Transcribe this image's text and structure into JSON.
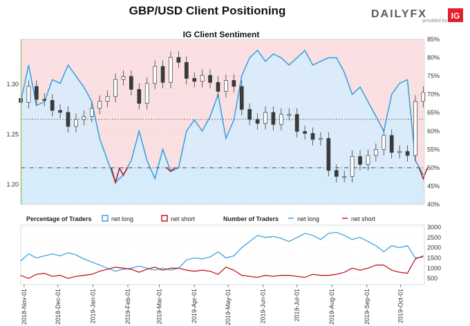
{
  "page": {
    "title": "GBP/USD Client Positioning",
    "subtitle": "IG Client Sentiment",
    "brand": {
      "name": "DAILYFX",
      "tagline": "provided by",
      "partner": "IG"
    }
  },
  "colors": {
    "net_long": "#3aa3e0",
    "net_short": "#c4161c",
    "long_fill": "#d7ecfb",
    "short_fill": "#fbe0e3",
    "candle_dark": "#3a3a3a",
    "brand_orange": "#f36f21",
    "ig_red": "#e4202e"
  },
  "chart_data": [
    {
      "type": "line",
      "name": "price-and-sentiment",
      "title": "IG Client Sentiment",
      "x_range": [
        "2018-10-29",
        "2019-10-22"
      ],
      "left_axis": {
        "ticks": [
          1.2,
          1.25,
          1.3
        ],
        "labels": [
          "1.20",
          "1.25",
          "1.30"
        ],
        "range": [
          1.18,
          1.345
        ]
      },
      "right_axis": {
        "ticks": [
          40,
          45,
          50,
          55,
          60,
          65,
          70,
          75,
          80,
          85
        ],
        "labels": [
          "40%",
          "45%",
          "50%",
          "55%",
          "60%",
          "65%",
          "70%",
          "75%",
          "80%",
          "85%"
        ],
        "range": [
          40,
          85
        ]
      },
      "reference_lines": [
        {
          "axis": "right",
          "value": 50
        },
        {
          "axis": "left",
          "value": 1.265
        }
      ],
      "price_close": [
        [
          "2018-10-29",
          1.282
        ],
        [
          "2018-11-05",
          1.298
        ],
        [
          "2018-11-12",
          1.285
        ],
        [
          "2018-11-19",
          1.284
        ],
        [
          "2018-11-26",
          1.274
        ],
        [
          "2018-12-03",
          1.272
        ],
        [
          "2018-12-10",
          1.258
        ],
        [
          "2018-12-17",
          1.265
        ],
        [
          "2018-12-24",
          1.268
        ],
        [
          "2018-12-31",
          1.276
        ],
        [
          "2019-01-07",
          1.283
        ],
        [
          "2019-01-14",
          1.288
        ],
        [
          "2019-01-21",
          1.305
        ],
        [
          "2019-01-28",
          1.308
        ],
        [
          "2019-02-04",
          1.295
        ],
        [
          "2019-02-11",
          1.281
        ],
        [
          "2019-02-18",
          1.301
        ],
        [
          "2019-02-25",
          1.318
        ],
        [
          "2019-03-04",
          1.302
        ],
        [
          "2019-03-11",
          1.327
        ],
        [
          "2019-03-18",
          1.322
        ],
        [
          "2019-03-25",
          1.306
        ],
        [
          "2019-04-01",
          1.303
        ],
        [
          "2019-04-08",
          1.309
        ],
        [
          "2019-04-15",
          1.302
        ],
        [
          "2019-04-22",
          1.293
        ],
        [
          "2019-04-29",
          1.304
        ],
        [
          "2019-05-06",
          1.298
        ],
        [
          "2019-05-13",
          1.275
        ],
        [
          "2019-05-20",
          1.265
        ],
        [
          "2019-05-27",
          1.261
        ],
        [
          "2019-06-03",
          1.272
        ],
        [
          "2019-06-10",
          1.26
        ],
        [
          "2019-06-17",
          1.27
        ],
        [
          "2019-06-24",
          1.27
        ],
        [
          "2019-07-01",
          1.253
        ],
        [
          "2019-07-08",
          1.251
        ],
        [
          "2019-07-15",
          1.245
        ],
        [
          "2019-07-22",
          1.246
        ],
        [
          "2019-07-29",
          1.214
        ],
        [
          "2019-08-05",
          1.208
        ],
        [
          "2019-08-12",
          1.208
        ],
        [
          "2019-08-19",
          1.228
        ],
        [
          "2019-08-26",
          1.22
        ],
        [
          "2019-09-02",
          1.229
        ],
        [
          "2019-09-09",
          1.235
        ],
        [
          "2019-09-16",
          1.249
        ],
        [
          "2019-09-23",
          1.232
        ],
        [
          "2019-09-30",
          1.233
        ],
        [
          "2019-10-07",
          1.229
        ],
        [
          "2019-10-14",
          1.283
        ],
        [
          "2019-10-21",
          1.292
        ]
      ],
      "series": [
        {
          "name": "net long",
          "axis": "right",
          "values": [
            [
              "2018-10-29",
              68
            ],
            [
              "2018-11-05",
              78
            ],
            [
              "2018-11-12",
              67
            ],
            [
              "2018-11-19",
              68
            ],
            [
              "2018-11-26",
              74
            ],
            [
              "2018-12-03",
              73
            ],
            [
              "2018-12-10",
              78
            ],
            [
              "2018-12-17",
              75
            ],
            [
              "2018-12-24",
              72
            ],
            [
              "2018-12-31",
              68
            ],
            [
              "2019-01-07",
              58
            ],
            [
              "2019-01-14",
              52
            ],
            [
              "2019-01-21",
              46
            ],
            [
              "2019-01-28",
              48
            ],
            [
              "2019-02-04",
              52
            ],
            [
              "2019-02-11",
              60
            ],
            [
              "2019-02-18",
              52
            ],
            [
              "2019-02-25",
              47
            ],
            [
              "2019-03-04",
              55
            ],
            [
              "2019-03-11",
              49
            ],
            [
              "2019-03-18",
              50
            ],
            [
              "2019-03-25",
              60
            ],
            [
              "2019-04-01",
              63
            ],
            [
              "2019-04-08",
              60
            ],
            [
              "2019-04-15",
              64
            ],
            [
              "2019-04-22",
              70
            ],
            [
              "2019-04-29",
              58
            ],
            [
              "2019-05-06",
              63
            ],
            [
              "2019-05-13",
              75
            ],
            [
              "2019-05-20",
              80
            ],
            [
              "2019-05-27",
              82
            ],
            [
              "2019-06-03",
              79
            ],
            [
              "2019-06-10",
              81
            ],
            [
              "2019-06-17",
              80
            ],
            [
              "2019-06-24",
              78
            ],
            [
              "2019-07-01",
              80
            ],
            [
              "2019-07-08",
              82
            ],
            [
              "2019-07-15",
              78
            ],
            [
              "2019-07-22",
              79
            ],
            [
              "2019-07-29",
              80
            ],
            [
              "2019-08-05",
              80
            ],
            [
              "2019-08-12",
              76
            ],
            [
              "2019-08-19",
              70
            ],
            [
              "2019-08-26",
              72
            ],
            [
              "2019-09-02",
              68
            ],
            [
              "2019-09-09",
              64
            ],
            [
              "2019-09-16",
              60
            ],
            [
              "2019-09-23",
              70
            ],
            [
              "2019-09-30",
              73
            ],
            [
              "2019-10-07",
              74
            ],
            [
              "2019-10-14",
              52
            ],
            [
              "2019-10-21",
              48
            ]
          ]
        },
        {
          "name": "net short",
          "axis": "right",
          "values": [
            [
              "2019-01-21",
              46
            ],
            [
              "2019-01-28",
              48
            ],
            [
              "2019-03-11",
              49
            ],
            [
              "2019-10-21",
              47
            ]
          ]
        }
      ]
    },
    {
      "type": "line",
      "name": "number-of-traders",
      "axis_ticks": [
        500,
        1000,
        1500,
        2000,
        2500,
        3000
      ],
      "axis_tick_labels": [
        "500",
        "1000",
        "1500",
        "2000",
        "2500",
        "3000"
      ],
      "y_range": [
        200,
        3100
      ],
      "x_tick_labels": [
        "2018-Nov-01",
        "2018-Dec-01",
        "2019-Jan-01",
        "2019-Feb-01",
        "2019-Mar-01",
        "2019-Apr-01",
        "2019-May-01",
        "2019-Jun-01",
        "2019-Jul-01",
        "2019-Aug-01",
        "2019-Sep-01",
        "2019-Oct-01"
      ],
      "x_tick_dates": [
        "2018-11-01",
        "2018-12-01",
        "2019-01-01",
        "2019-02-01",
        "2019-03-01",
        "2019-04-01",
        "2019-05-01",
        "2019-06-01",
        "2019-07-01",
        "2019-08-01",
        "2019-09-01",
        "2019-10-01"
      ],
      "series": [
        {
          "name": "net long",
          "values": [
            [
              "2018-10-29",
              1350
            ],
            [
              "2018-11-05",
              1700
            ],
            [
              "2018-11-12",
              1500
            ],
            [
              "2018-11-19",
              1600
            ],
            [
              "2018-11-26",
              1700
            ],
            [
              "2018-12-03",
              1600
            ],
            [
              "2018-12-10",
              1750
            ],
            [
              "2018-12-17",
              1650
            ],
            [
              "2018-12-24",
              1450
            ],
            [
              "2018-12-31",
              1300
            ],
            [
              "2019-01-07",
              1150
            ],
            [
              "2019-01-14",
              1000
            ],
            [
              "2019-01-21",
              850
            ],
            [
              "2019-01-28",
              950
            ],
            [
              "2019-02-04",
              1000
            ],
            [
              "2019-02-11",
              1100
            ],
            [
              "2019-02-18",
              1000
            ],
            [
              "2019-02-25",
              900
            ],
            [
              "2019-03-04",
              1000
            ],
            [
              "2019-03-11",
              900
            ],
            [
              "2019-03-18",
              1000
            ],
            [
              "2019-03-25",
              1400
            ],
            [
              "2019-04-01",
              1500
            ],
            [
              "2019-04-08",
              1450
            ],
            [
              "2019-04-15",
              1550
            ],
            [
              "2019-04-22",
              1800
            ],
            [
              "2019-04-29",
              1500
            ],
            [
              "2019-05-06",
              1600
            ],
            [
              "2019-05-13",
              2000
            ],
            [
              "2019-05-20",
              2300
            ],
            [
              "2019-05-27",
              2600
            ],
            [
              "2019-06-03",
              2500
            ],
            [
              "2019-06-10",
              2550
            ],
            [
              "2019-06-17",
              2450
            ],
            [
              "2019-06-24",
              2300
            ],
            [
              "2019-07-01",
              2500
            ],
            [
              "2019-07-08",
              2700
            ],
            [
              "2019-07-15",
              2600
            ],
            [
              "2019-07-22",
              2400
            ],
            [
              "2019-07-29",
              2700
            ],
            [
              "2019-08-05",
              2750
            ],
            [
              "2019-08-12",
              2600
            ],
            [
              "2019-08-19",
              2400
            ],
            [
              "2019-08-26",
              2500
            ],
            [
              "2019-09-02",
              2300
            ],
            [
              "2019-09-09",
              2100
            ],
            [
              "2019-09-16",
              1800
            ],
            [
              "2019-09-23",
              2100
            ],
            [
              "2019-09-30",
              2000
            ],
            [
              "2019-10-07",
              2100
            ],
            [
              "2019-10-14",
              1500
            ],
            [
              "2019-10-21",
              1550
            ]
          ]
        },
        {
          "name": "net short",
          "values": [
            [
              "2018-10-29",
              650
            ],
            [
              "2018-11-05",
              500
            ],
            [
              "2018-11-12",
              700
            ],
            [
              "2018-11-19",
              750
            ],
            [
              "2018-11-26",
              600
            ],
            [
              "2018-12-03",
              650
            ],
            [
              "2018-12-10",
              500
            ],
            [
              "2018-12-17",
              600
            ],
            [
              "2018-12-24",
              650
            ],
            [
              "2018-12-31",
              700
            ],
            [
              "2019-01-07",
              850
            ],
            [
              "2019-01-14",
              950
            ],
            [
              "2019-01-21",
              1050
            ],
            [
              "2019-01-28",
              1000
            ],
            [
              "2019-02-04",
              950
            ],
            [
              "2019-02-11",
              800
            ],
            [
              "2019-02-18",
              950
            ],
            [
              "2019-02-25",
              1050
            ],
            [
              "2019-03-04",
              900
            ],
            [
              "2019-03-11",
              1000
            ],
            [
              "2019-03-18",
              1000
            ],
            [
              "2019-03-25",
              900
            ],
            [
              "2019-04-01",
              850
            ],
            [
              "2019-04-08",
              900
            ],
            [
              "2019-04-15",
              850
            ],
            [
              "2019-04-22",
              700
            ],
            [
              "2019-04-29",
              1050
            ],
            [
              "2019-05-06",
              900
            ],
            [
              "2019-05-13",
              650
            ],
            [
              "2019-05-20",
              600
            ],
            [
              "2019-05-27",
              550
            ],
            [
              "2019-06-03",
              650
            ],
            [
              "2019-06-10",
              600
            ],
            [
              "2019-06-17",
              650
            ],
            [
              "2019-06-24",
              650
            ],
            [
              "2019-07-01",
              600
            ],
            [
              "2019-07-08",
              550
            ],
            [
              "2019-07-15",
              700
            ],
            [
              "2019-07-22",
              650
            ],
            [
              "2019-07-29",
              650
            ],
            [
              "2019-08-05",
              700
            ],
            [
              "2019-08-12",
              800
            ],
            [
              "2019-08-19",
              1000
            ],
            [
              "2019-08-26",
              900
            ],
            [
              "2019-09-02",
              1000
            ],
            [
              "2019-09-09",
              1150
            ],
            [
              "2019-09-16",
              1150
            ],
            [
              "2019-09-23",
              900
            ],
            [
              "2019-09-30",
              800
            ],
            [
              "2019-10-07",
              750
            ],
            [
              "2019-10-14",
              1450
            ],
            [
              "2019-10-21",
              1600
            ]
          ]
        }
      ]
    }
  ],
  "legend": {
    "percentage_title": "Percentage of Traders",
    "number_title": "Number of Traders",
    "net_long": "net long",
    "net_short": "net short"
  }
}
